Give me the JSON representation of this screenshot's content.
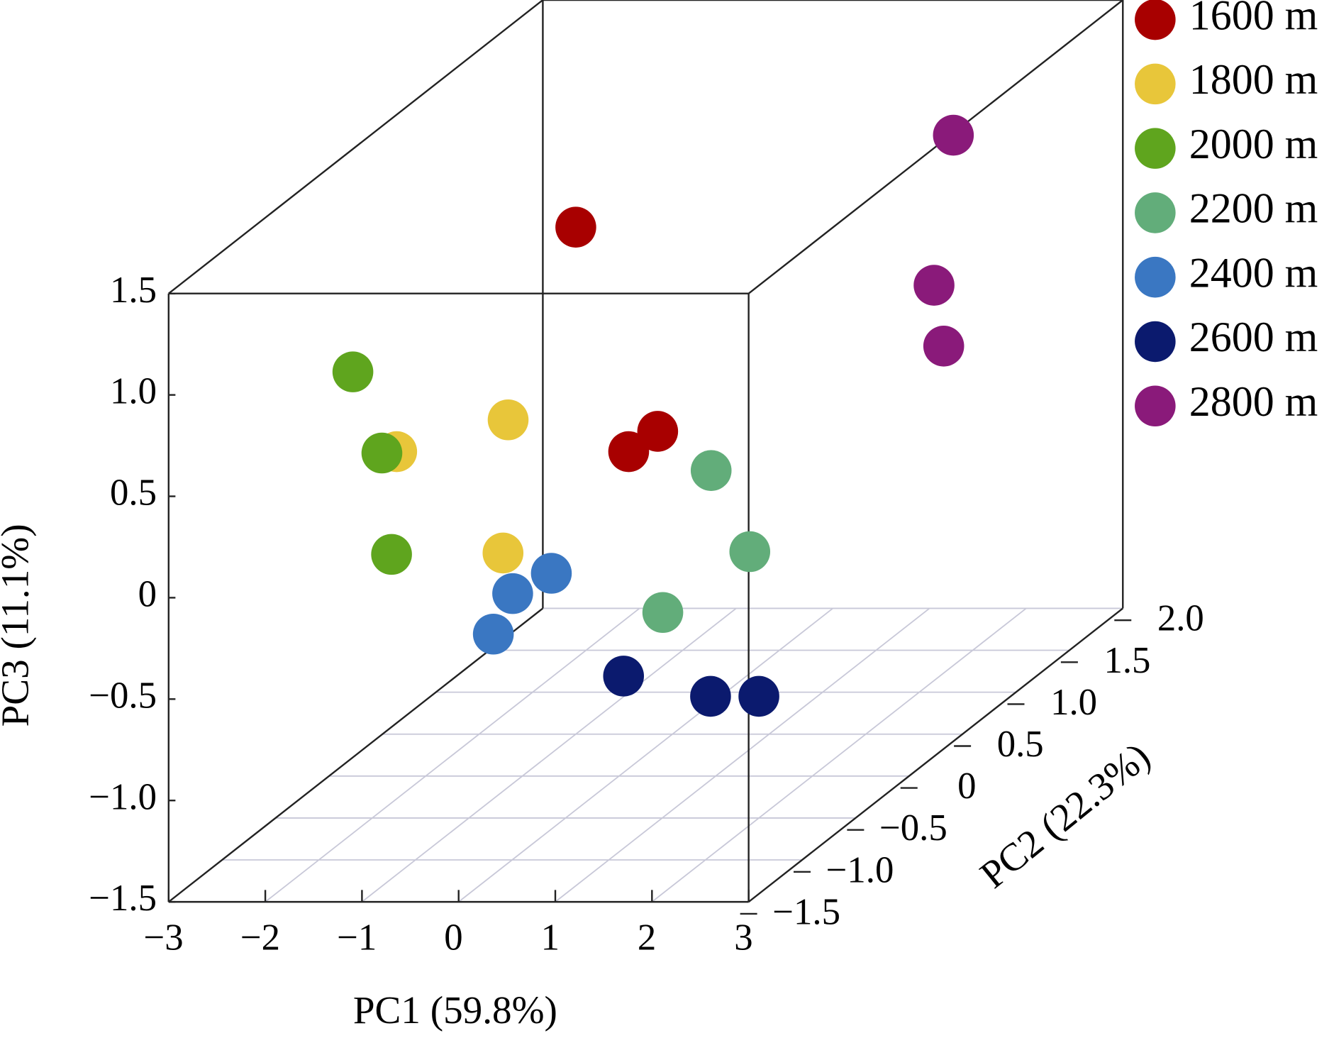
{
  "chart_data": {
    "type": "scatter3d",
    "xlabel": "PC1 (59.8%)",
    "ylabel": "PC2 (22.3%)",
    "zlabel": "PC3 (11.1%)",
    "xlim": [
      -3,
      3
    ],
    "ylim": [
      -1.5,
      2
    ],
    "zlim": [
      -1.5,
      1.5
    ],
    "xticks": [
      {
        "value": -3,
        "label": "−3"
      },
      {
        "value": -2,
        "label": "−2"
      },
      {
        "value": -1,
        "label": "−1"
      },
      0,
      1,
      2,
      3
    ],
    "yticks": [
      {
        "value": -1.5,
        "label": "−1.5"
      },
      {
        "value": -1,
        "label": "−1.0"
      },
      {
        "value": -0.5,
        "label": "−0.5"
      },
      0,
      0.5,
      {
        "value": 1,
        "label": "1.0"
      },
      1.5,
      {
        "value": 2,
        "label": "2.0"
      }
    ],
    "zticks": [
      {
        "value": -1.5,
        "label": "−1.5"
      },
      {
        "value": -1,
        "label": "−1.0"
      },
      {
        "value": -0.5,
        "label": "−0.5"
      },
      0,
      0.5,
      {
        "value": 1,
        "label": "1.0"
      },
      1.5
    ],
    "grid": true,
    "legend": "upper right",
    "series": [
      {
        "name": "1600 m",
        "color": "#a80000",
        "x": [
          -1.0,
          0.1,
          0.4
        ],
        "y": [
          0.5,
          0,
          0
        ],
        "z": [
          1.0,
          0.1,
          0.2
        ]
      },
      {
        "name": "1800 m",
        "color": "#e8c63a",
        "x": [
          -1.7,
          -2.3,
          -1.2
        ],
        "y": [
          0.5,
          0,
          0
        ],
        "z": [
          0.05,
          0.1,
          -0.4
        ]
      },
      {
        "name": "2000 m",
        "color": "#5fa51e",
        "x": [
          -2.2,
          -1.9,
          -1.8
        ],
        "y": [
          -0.5,
          -0.5,
          -0.5
        ],
        "z": [
          0.7,
          0.3,
          -0.2
        ]
      },
      {
        "name": "2200 m",
        "color": "#62ad7a",
        "x": [
          0.4,
          0.8,
          -0.1
        ],
        "y": [
          0.5,
          0.5,
          0.5
        ],
        "z": [
          -0.2,
          -0.6,
          -0.9
        ]
      },
      {
        "name": "2400 m",
        "color": "#3a77c2",
        "x": [
          -0.7,
          -1.1,
          -1.3
        ],
        "y": [
          0,
          0,
          0
        ],
        "z": [
          -0.5,
          -0.6,
          -0.8
        ]
      },
      {
        "name": "2600 m",
        "color": "#0b1a6e",
        "x": [
          0.6,
          1.5,
          2.0
        ],
        "y": [
          -0.5,
          -0.5,
          -0.5
        ],
        "z": [
          -0.8,
          -0.9,
          -0.9
        ]
      },
      {
        "name": "2800 m",
        "color": "#8a1a7a",
        "x": [
          1.8,
          1.6,
          1.7
        ],
        "y": [
          1.5,
          1.5,
          1.5
        ],
        "z": [
          1.04,
          0.3,
          0.0
        ]
      }
    ]
  }
}
